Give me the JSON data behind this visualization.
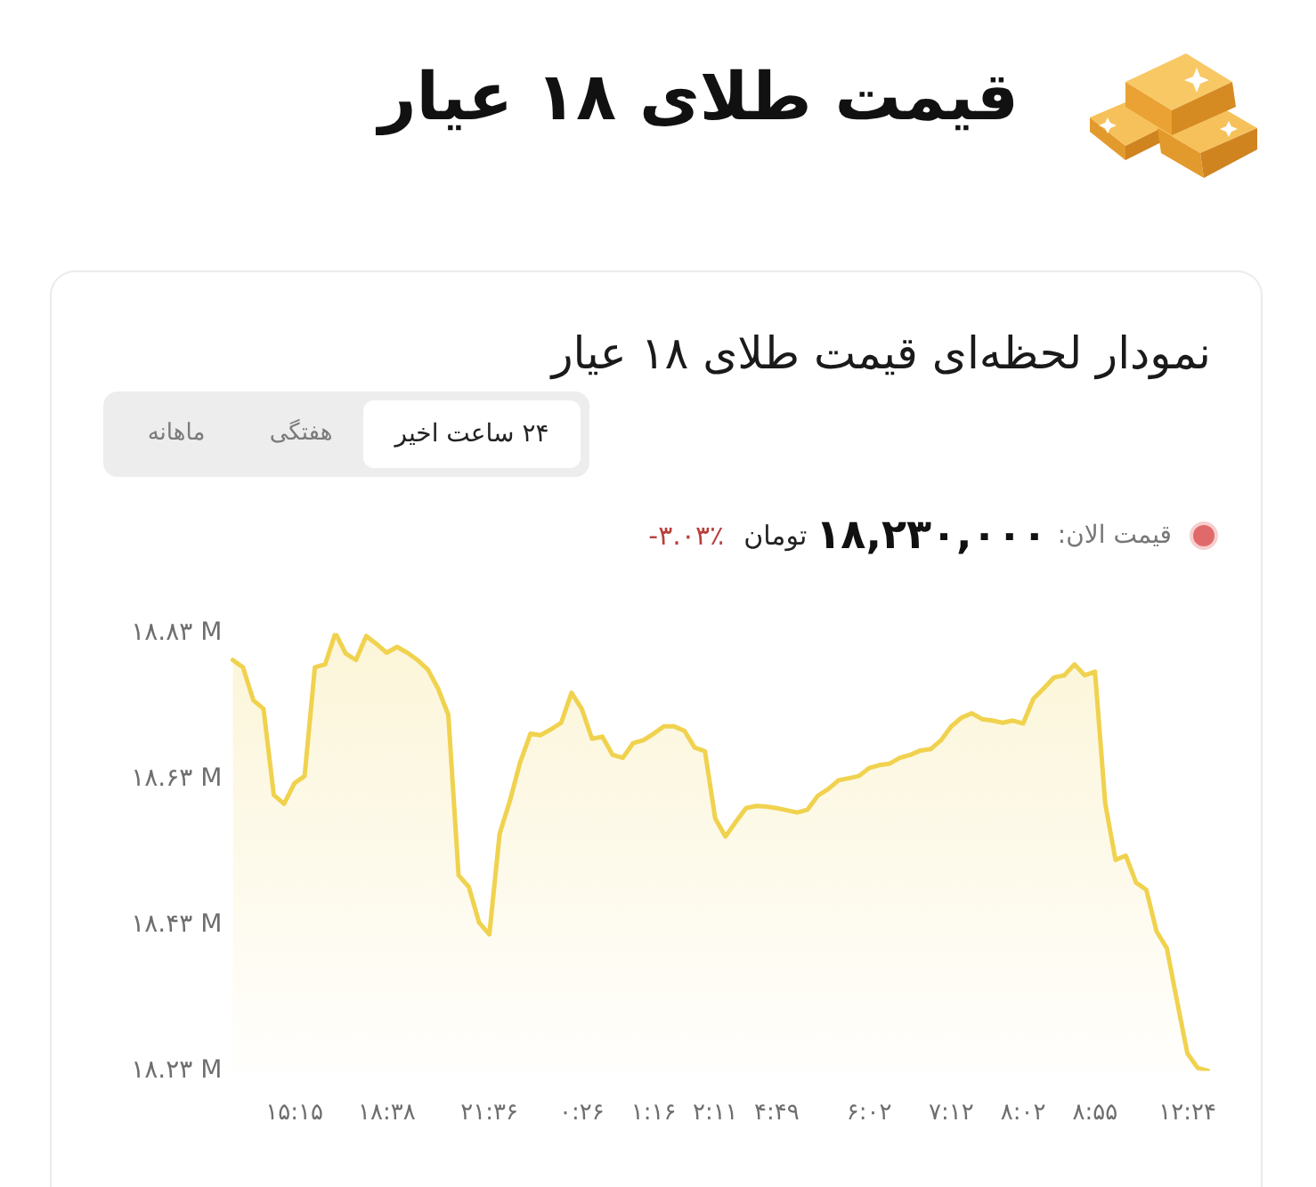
{
  "chart_data": {
    "type": "area",
    "title": "قیمت طلای ۱۸ عیار",
    "subtitle": "نمودار لحظه‌ای قیمت طلای ۱۸ عیار",
    "annotations": [
      "۲۴ ساعت اخیر",
      "هفتگی",
      "ماهانه",
      "قیمت الان:",
      "۱۸,۲۳۰,۰۰۰",
      "تومان",
      "-۳.۰۳٪"
    ],
    "categories": [
      null,
      null,
      null,
      null,
      null,
      null,
      "۱۵:۱۵",
      null,
      null,
      null,
      null,
      null,
      null,
      null,
      null,
      "۱۸:۳۸",
      null,
      null,
      null,
      null,
      null,
      null,
      null,
      null,
      null,
      "۲۱:۳۶",
      null,
      null,
      null,
      null,
      null,
      null,
      null,
      null,
      "۰:۲۶",
      null,
      null,
      null,
      null,
      null,
      null,
      "۱:۱۶",
      null,
      null,
      null,
      null,
      null,
      "۲:۱۱",
      null,
      null,
      null,
      null,
      null,
      "۴:۴۹",
      null,
      null,
      null,
      null,
      null,
      null,
      null,
      null,
      "۶:۰۲",
      null,
      null,
      null,
      null,
      null,
      null,
      null,
      "۷:۱۲",
      null,
      null,
      null,
      null,
      null,
      null,
      "۸:۰۲",
      null,
      null,
      null,
      null,
      null,
      null,
      "۸:۵۵",
      null,
      null,
      null,
      null,
      null,
      null,
      null,
      null,
      "۱۲:۲۴",
      null,
      null
    ],
    "values": [
      18.793,
      18.783,
      18.738,
      18.726,
      18.608,
      18.596,
      18.624,
      18.634,
      18.783,
      18.787,
      18.83,
      18.802,
      18.793,
      18.826,
      18.815,
      18.803,
      18.811,
      18.803,
      18.793,
      18.78,
      18.754,
      18.718,
      18.498,
      18.482,
      18.433,
      18.417,
      18.555,
      18.6,
      18.653,
      18.692,
      18.69,
      18.698,
      18.707,
      18.748,
      18.726,
      18.685,
      18.688,
      18.663,
      18.659,
      18.679,
      18.683,
      18.692,
      18.702,
      18.702,
      18.696,
      18.673,
      18.668,
      18.576,
      18.551,
      18.571,
      18.59,
      18.593,
      18.592,
      18.59,
      18.587,
      18.584,
      18.588,
      18.607,
      18.616,
      18.628,
      18.631,
      18.634,
      18.645,
      18.649,
      18.651,
      18.659,
      18.663,
      18.669,
      18.671,
      18.683,
      18.702,
      18.714,
      18.72,
      18.712,
      18.71,
      18.707,
      18.71,
      18.706,
      18.74,
      18.754,
      18.769,
      18.772,
      18.787,
      18.772,
      18.777,
      18.596,
      18.519,
      18.525,
      18.488,
      18.478,
      18.421,
      18.398,
      18.325,
      18.254,
      18.234,
      18.23
    ],
    "color": "#f0d24e",
    "ylim": [
      18.23,
      18.83
    ],
    "yticks": [
      {
        "value": 18.23,
        "label": "۱۸.۲۳ M"
      },
      {
        "value": 18.43,
        "label": "۱۸.۴۳ M"
      },
      {
        "value": 18.63,
        "label": "۱۸.۶۳ M"
      },
      {
        "value": 18.83,
        "label": "۱۸.۸۳ M"
      }
    ]
  }
}
